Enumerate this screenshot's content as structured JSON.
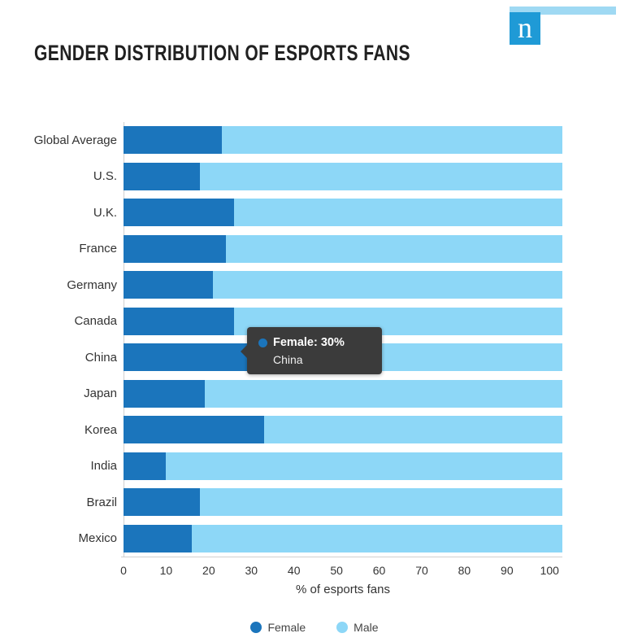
{
  "header": {
    "title": "GENDER DISTRIBUTION OF ESPORTS FANS",
    "logo_letter": "n"
  },
  "colors": {
    "female": "#1b75bc",
    "male": "#8dd7f7",
    "tooltip_bg": "#3b3b3b",
    "logo": "#1f9ad6",
    "strip": "#9fd9f3"
  },
  "chart_data": {
    "type": "bar",
    "orientation": "horizontal",
    "stacked": true,
    "title": "GENDER DISTRIBUTION OF ESPORTS FANS",
    "categories": [
      "Global Average",
      "U.S.",
      "U.K.",
      "France",
      "Germany",
      "Canada",
      "China",
      "Japan",
      "Korea",
      "India",
      "Brazil",
      "Mexico"
    ],
    "series": [
      {
        "name": "Female",
        "values": [
          23,
          18,
          26,
          24,
          21,
          26,
          30,
          19,
          33,
          10,
          18,
          16
        ]
      },
      {
        "name": "Male",
        "values": [
          77,
          82,
          74,
          76,
          79,
          74,
          70,
          81,
          67,
          90,
          82,
          84
        ]
      }
    ],
    "xlabel": "% of esports fans",
    "x_ticks": [
      0,
      10,
      20,
      30,
      40,
      50,
      60,
      70,
      80,
      90,
      100
    ],
    "xlim": [
      0,
      103
    ],
    "grid": false,
    "legend_position": "bottom"
  },
  "tooltip": {
    "series": "Female",
    "value_label": "Female: 30%",
    "category": "China"
  }
}
